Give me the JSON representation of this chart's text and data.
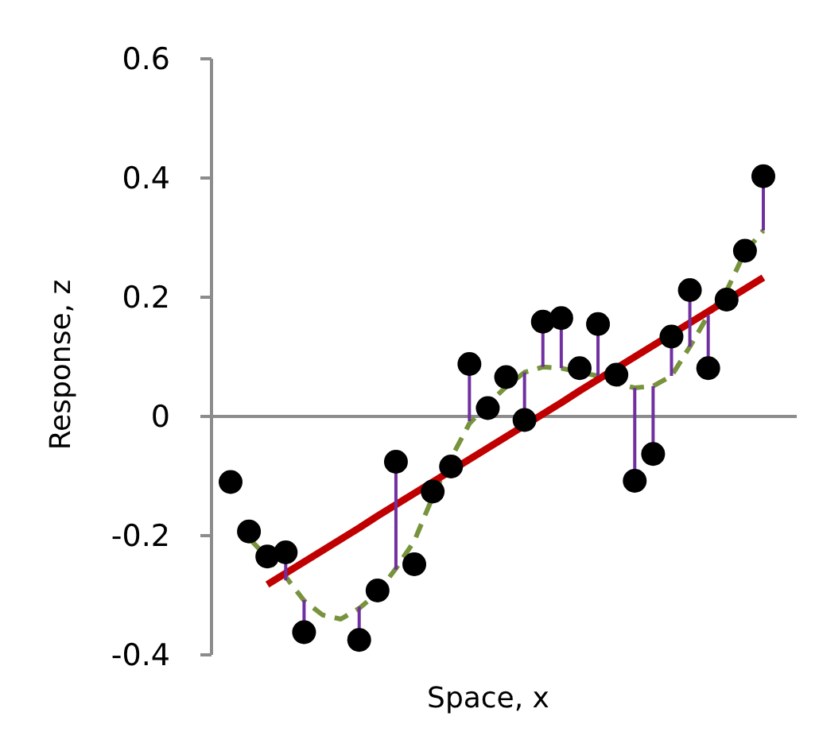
{
  "chart_data": {
    "type": "scatter",
    "xlabel": "Space, x",
    "ylabel": "Response, z",
    "ylim": [
      -0.4,
      0.6
    ],
    "yticks": [
      -0.4,
      -0.2,
      0,
      0.2,
      0.4,
      0.6
    ],
    "tick_labels": "y",
    "grid": false,
    "ref_lines": [
      {
        "axis": "y",
        "value": 0,
        "color": "#8c8c8c"
      }
    ],
    "categories": [
      null,
      null,
      null,
      null,
      null,
      null,
      null,
      null,
      null,
      null,
      null,
      null,
      null,
      null,
      null,
      null,
      null,
      null,
      null,
      null,
      null,
      null,
      null,
      null,
      null,
      null,
      null,
      null,
      null,
      null
    ],
    "series": [
      {
        "type": "line",
        "color": "#77933c",
        "line_style": "dashed",
        "marker": "none",
        "values": [
          null,
          -0.204,
          -0.237,
          -0.269,
          -0.309,
          -0.333,
          -0.34,
          -0.322,
          -0.296,
          -0.255,
          -0.209,
          -0.135,
          -0.07,
          -0.012,
          0.02,
          0.05,
          0.074,
          0.083,
          0.081,
          0.074,
          0.068,
          0.055,
          0.048,
          0.051,
          0.068,
          0.117,
          0.17,
          0.211,
          0.276,
          0.312
        ]
      },
      {
        "type": "line",
        "color": "#c00000",
        "line_style": "solid",
        "marker": "none",
        "values": [
          null,
          null,
          -0.282,
          -0.263,
          -0.244,
          -0.225,
          -0.206,
          -0.187,
          -0.167,
          -0.148,
          -0.129,
          -0.11,
          -0.091,
          -0.072,
          -0.053,
          -0.034,
          -0.015,
          0.004,
          0.023,
          0.043,
          0.062,
          0.081,
          0.1,
          0.119,
          0.138,
          0.157,
          0.176,
          0.195,
          0.214,
          0.233
        ]
      },
      {
        "color": "#000000",
        "marker": "circle",
        "values": [
          -0.11,
          -0.193,
          -0.235,
          -0.228,
          -0.362,
          null,
          null,
          -0.375,
          -0.292,
          -0.076,
          -0.248,
          -0.126,
          -0.084,
          0.088,
          0.014,
          0.066,
          -0.006,
          0.159,
          0.165,
          0.081,
          0.155,
          0.07,
          -0.108,
          -0.063,
          0.134,
          0.212,
          0.081,
          0.196,
          0.278,
          0.403
        ],
        "errors": [
          null,
          null,
          null,
          [
            -0.275,
            -0.228
          ],
          [
            -0.362,
            -0.308
          ],
          null,
          null,
          [
            -0.375,
            -0.319
          ],
          null,
          [
            -0.257,
            -0.076
          ],
          null,
          null,
          null,
          [
            -0.008,
            0.088
          ],
          null,
          null,
          [
            -0.006,
            0.074
          ],
          [
            0.083,
            0.159
          ],
          [
            0.081,
            0.165
          ],
          null,
          [
            0.068,
            0.155
          ],
          null,
          [
            -0.108,
            0.048
          ],
          [
            -0.063,
            0.051
          ],
          [
            0.068,
            0.134
          ],
          [
            0.117,
            0.212
          ],
          [
            0.081,
            0.17
          ],
          null,
          null,
          [
            0.312,
            0.403
          ]
        ]
      }
    ]
  }
}
